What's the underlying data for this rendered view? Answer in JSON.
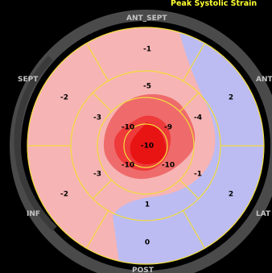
{
  "title": "Peak Systolic Strain",
  "walls": {
    "ant_sept": "ANT_SEPT",
    "ant": "ANT",
    "lat": "LAT",
    "post": "POST",
    "inf": "INF",
    "sept": "SEPT"
  },
  "segments": {
    "basal_ant_sept": "-1",
    "basal_ant": "2",
    "basal_lat": "2",
    "basal_post": "0",
    "basal_inf": "-2",
    "basal_sept": "-2",
    "mid_ant_sept": "-5",
    "mid_ant": "-4",
    "mid_lat": "-1",
    "mid_post": "1",
    "mid_inf": "-3",
    "mid_sept": "-3",
    "apical_ant": "-9",
    "apical_lat": "-10",
    "apical_inf": "-10",
    "apical_sept": "-10",
    "apex": "-10"
  },
  "colors": {
    "title": "#ffff33",
    "grid_lines": "#f2dc3c",
    "positive_strain": "#bcbcf2",
    "mild_negative_strain": "#f7b4b4",
    "moderate_negative_strain": "#ef6b6b",
    "strong_negative_strain": "#ee3a3a",
    "peak_negative_strain": "#e81414",
    "outer_ring": "#4a4a4a",
    "wall_label": "#c4c4c4"
  }
}
